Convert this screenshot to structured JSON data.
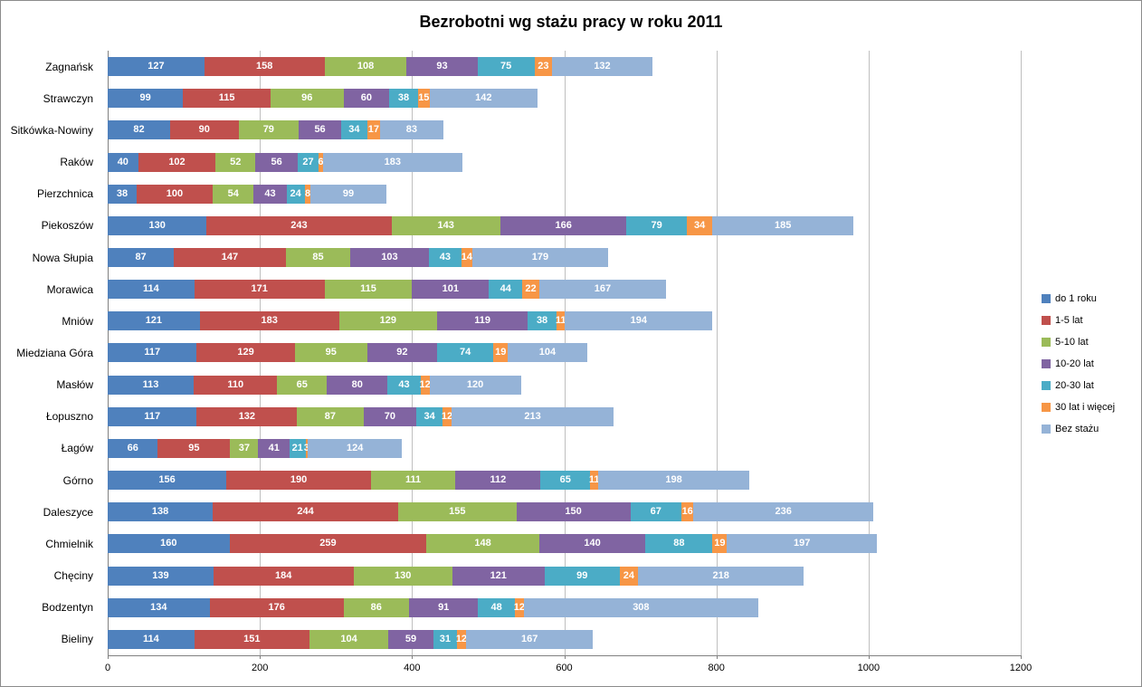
{
  "title": "Bezrobotni wg stażu pracy w roku 2011",
  "chart_data": {
    "type": "bar",
    "orientation": "horizontal",
    "stacked": true,
    "title": "Bezrobotni wg stażu pracy w roku 2011",
    "xlabel": "",
    "ylabel": "",
    "xlim": [
      0,
      1200
    ],
    "x_ticks": [
      0,
      200,
      400,
      600,
      800,
      1000,
      1200
    ],
    "grid": true,
    "legend_position": "right",
    "bar_label_color": "#FFFFFF",
    "gridline_color": "#BFBFBF",
    "axis_color": "#808080",
    "categories": [
      "Zagnańsk",
      "Strawczyn",
      "Sitkówka-Nowiny",
      "Raków",
      "Pierzchnica",
      "Piekoszów",
      "Nowa Słupia",
      "Morawica",
      "Mniów",
      "Miedziana Góra",
      "Masłów",
      "Łopuszno",
      "Łagów",
      "Górno",
      "Daleszyce",
      "Chmielnik",
      "Chęciny",
      "Bodzentyn",
      "Bieliny"
    ],
    "series": [
      {
        "name": "do 1 roku",
        "color": "#4F81BD",
        "values": [
          127,
          99,
          82,
          40,
          38,
          130,
          87,
          114,
          121,
          117,
          113,
          117,
          66,
          156,
          138,
          160,
          139,
          134,
          114
        ]
      },
      {
        "name": "1-5 lat",
        "color": "#C0504D",
        "values": [
          158,
          115,
          90,
          102,
          100,
          243,
          147,
          171,
          183,
          129,
          110,
          132,
          95,
          190,
          244,
          259,
          184,
          176,
          151
        ]
      },
      {
        "name": "5-10 lat",
        "color": "#9BBB59",
        "values": [
          108,
          96,
          79,
          52,
          54,
          143,
          85,
          115,
          129,
          95,
          65,
          87,
          37,
          111,
          155,
          148,
          130,
          86,
          104
        ]
      },
      {
        "name": "10-20 lat",
        "color": "#8064A2",
        "values": [
          93,
          60,
          56,
          56,
          43,
          166,
          103,
          101,
          119,
          92,
          80,
          70,
          41,
          112,
          150,
          140,
          121,
          91,
          59
        ]
      },
      {
        "name": "20-30 lat",
        "color": "#4BACC6",
        "values": [
          75,
          38,
          34,
          27,
          24,
          79,
          43,
          44,
          38,
          74,
          43,
          34,
          21,
          65,
          67,
          88,
          99,
          48,
          31
        ]
      },
      {
        "name": "30 lat i więcej",
        "color": "#F79646",
        "values": [
          23,
          15,
          17,
          6,
          8,
          34,
          14,
          22,
          11,
          19,
          12,
          12,
          3,
          11,
          16,
          19,
          24,
          12,
          12
        ]
      },
      {
        "name": "Bez stażu",
        "color": "#95B3D7",
        "values": [
          132,
          142,
          83,
          183,
          99,
          185,
          179,
          167,
          194,
          104,
          120,
          213,
          124,
          198,
          236,
          197,
          218,
          308,
          167
        ]
      }
    ]
  }
}
